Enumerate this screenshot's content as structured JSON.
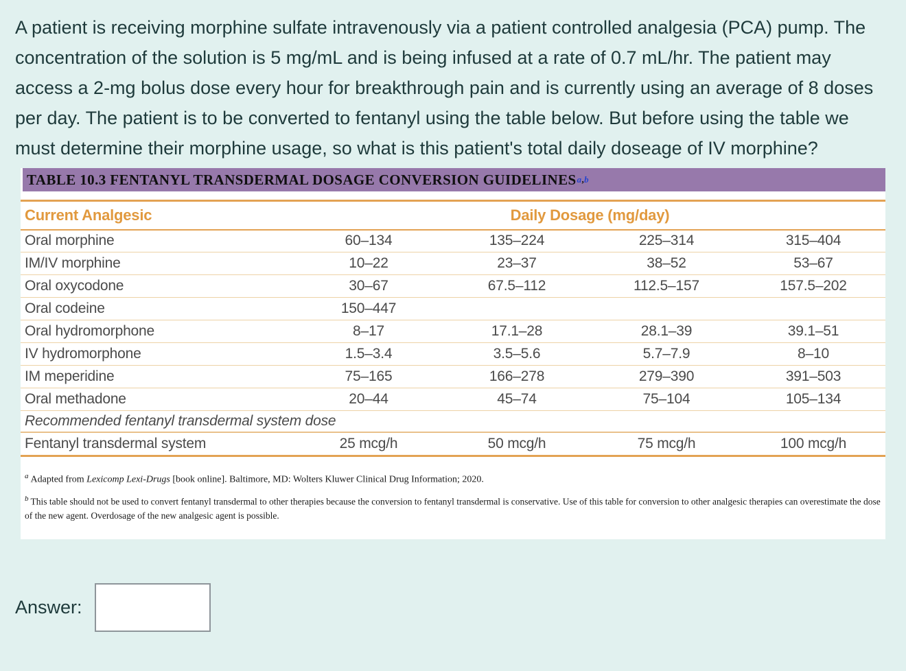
{
  "question": {
    "text": "A patient is receiving morphine sulfate intravenously via a patient controlled analgesia (PCA) pump. The concentration of the solution is 5 mg/mL and is being infused at a rate of 0.7 mL/hr. The patient may access a 2-mg bolus dose every hour for breakthrough pain and is currently using an average of 8 doses per day. The patient is to be converted to fentanyl using the table below. But before using the table we must determine their morphine usage, so what is this patient's total daily doseage of IV morphine?"
  },
  "table": {
    "title": "TABLE 10.3 FENTANYL TRANSDERMAL DOSAGE CONVERSION GUIDELINES",
    "title_superscripts": {
      "first": "a",
      "separator": ",",
      "second": "b"
    },
    "col_header_left": "Current Analgesic",
    "col_header_right": "Daily Dosage (mg/day)",
    "rows": [
      {
        "label": "Oral morphine",
        "values": [
          "60–134",
          "135–224",
          "225–314",
          "315–404"
        ]
      },
      {
        "label": "IM/IV morphine",
        "values": [
          "10–22",
          "23–37",
          "38–52",
          "53–67"
        ]
      },
      {
        "label": "Oral oxycodone",
        "values": [
          "30–67",
          "67.5–112",
          "112.5–157",
          "157.5–202"
        ]
      },
      {
        "label": "Oral codeine",
        "values": [
          "150–447",
          "",
          "",
          ""
        ]
      },
      {
        "label": "Oral hydromorphone",
        "values": [
          "8–17",
          "17.1–28",
          "28.1–39",
          "39.1–51"
        ]
      },
      {
        "label": "IV hydromorphone",
        "values": [
          "1.5–3.4",
          "3.5–5.6",
          "5.7–7.9",
          "8–10"
        ]
      },
      {
        "label": "IM meperidine",
        "values": [
          "75–165",
          "166–278",
          "279–390",
          "391–503"
        ]
      },
      {
        "label": "Oral methadone",
        "values": [
          "20–44",
          "45–74",
          "75–104",
          "105–134"
        ]
      }
    ],
    "section_row": "Recommended fentanyl transdermal system dose",
    "fentanyl_row": {
      "label": "Fentanyl transdermal system",
      "values": [
        "25 mcg/h",
        "50 mcg/h",
        "75 mcg/h",
        "100 mcg/h"
      ]
    },
    "footnotes": {
      "a_marker": "a",
      "a_pre": "Adapted from ",
      "a_italic": "Lexicomp Lexi-Drugs",
      "a_post": " [book online]. Baltimore, MD: Wolters Kluwer Clinical Drug Information; 2020.",
      "b_marker": "b",
      "b_text": "This table should not be used to convert fentanyl transdermal to other therapies because the conversion to fentanyl transdermal is conservative. Use of this table for conversion to other analgesic therapies can overestimate the dose of the new agent. Overdosage of the new analgesic agent is possible."
    }
  },
  "answer": {
    "label": "Answer:",
    "value": "",
    "placeholder": ""
  },
  "colors": {
    "page_background": "#e1f1ef",
    "question_text": "#1e3a3b",
    "table_title_bar": "#9779ab",
    "superscript_blue": "#2543ce",
    "header_orange": "#e1993e",
    "rule_orange": "#e3a253",
    "rule_tan": "#edd2a6",
    "row_text": "#4a4a4a",
    "input_border": "#8e959a"
  }
}
